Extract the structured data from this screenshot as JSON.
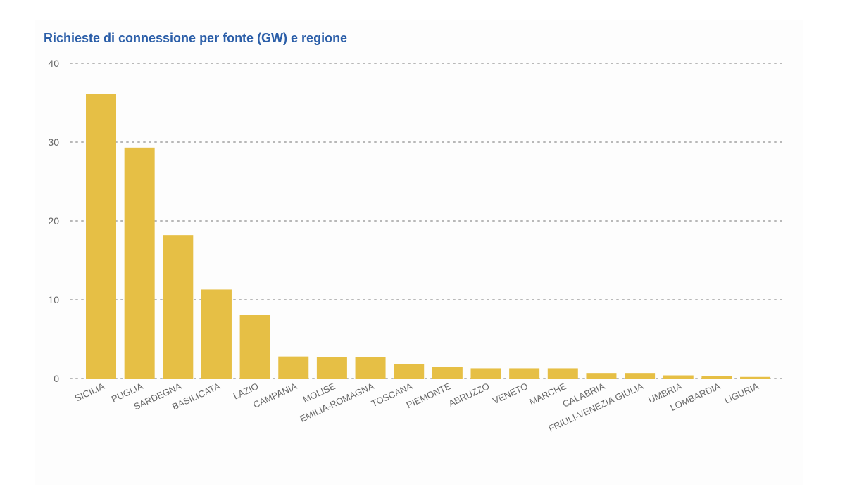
{
  "chart_data": {
    "type": "bar",
    "title": "Richieste di connessione per fonte (GW) e regione",
    "xlabel": "",
    "ylabel": "",
    "ylim": [
      0,
      40
    ],
    "yticks": [
      0,
      10,
      20,
      30,
      40
    ],
    "grid": true,
    "legend": "none",
    "bar_color": "#e6bf45",
    "categories": [
      "SICILIA",
      "PUGLIA",
      "SARDEGNA",
      "BASILICATA",
      "LAZIO",
      "CAMPANIA",
      "MOLISE",
      "EMILIA-ROMAGNA",
      "TOSCANA",
      "PIEMONTE",
      "ABRUZZO",
      "VENETO",
      "MARCHE",
      "CALABRIA",
      "FRIULI-VENEZIA GIULIA",
      "UMBRIA",
      "LOMBARDIA",
      "LIGURIA"
    ],
    "values": [
      36.1,
      29.3,
      18.2,
      11.3,
      8.1,
      2.8,
      2.7,
      2.7,
      1.8,
      1.5,
      1.3,
      1.3,
      1.3,
      0.7,
      0.7,
      0.4,
      0.3,
      0.2
    ]
  }
}
